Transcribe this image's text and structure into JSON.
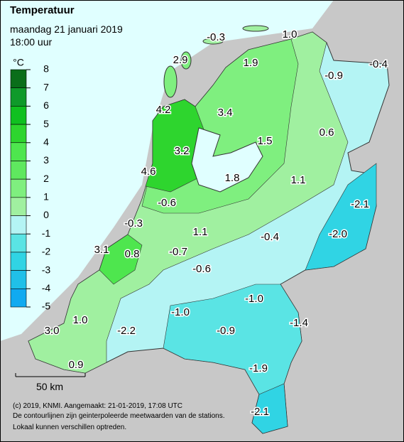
{
  "header": {
    "title": "Temperatuur",
    "subtitle": "maandag 21 januari 2019",
    "time": "18:00 uur"
  },
  "legend": {
    "unit": "°C",
    "ticks": [
      8,
      7,
      6,
      5,
      4,
      3,
      2,
      1,
      0,
      -1,
      -2,
      -3,
      -4,
      -5
    ]
  },
  "stations": [
    "-0.3",
    "1.0",
    "2.9",
    "1.9",
    "-0.9",
    "-0.4",
    "4.2",
    "3.4",
    "0.6",
    "1.5",
    "3.2",
    "4.6",
    "1.8",
    "1.1",
    "-2.1",
    "-0.6",
    "-0.3",
    "1.1",
    "-0.4",
    "-2.0",
    "3.1",
    "0.8",
    "-0.7",
    "-0.6",
    "-1.0",
    "-1.0",
    "-1.4",
    "1.0",
    "-2.2",
    "-0.9",
    "3.0",
    "0.9",
    "-1.9",
    "-2.1"
  ],
  "scale_bar": "50 km",
  "footer": [
    "(c) 2019, KNMI. Aangemaakt: 21-01-2019, 17:08 UTC",
    "De contourlijnen zijn geinterpoleerde meetwaarden van de stations.",
    "Lokaal kunnen verschillen optreden."
  ]
}
